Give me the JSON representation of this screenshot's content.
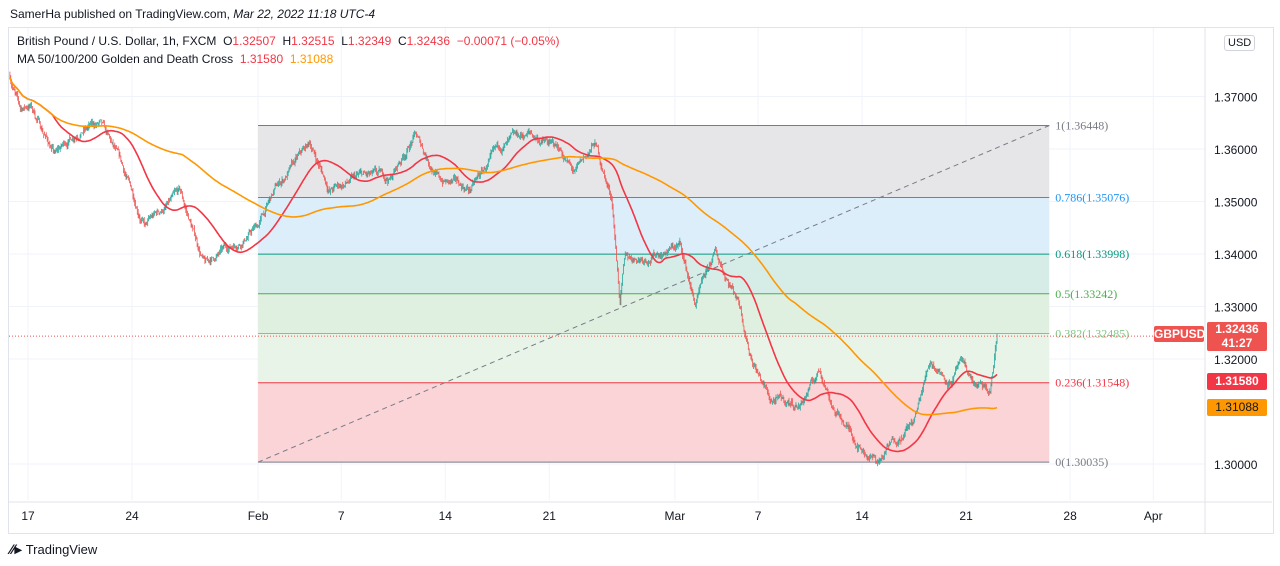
{
  "header": {
    "publisher": "SamerHa published on TradingView.com,",
    "date": "Mar 22, 2022 11:18 UTC-4"
  },
  "legend": {
    "symbol": "British Pound / U.S. Dollar, 1h, FXCM",
    "o_label": "O",
    "o": "1.32507",
    "h_label": "H",
    "h": "1.32515",
    "l_label": "L",
    "l": "1.32349",
    "c_label": "C",
    "c": "1.32436",
    "change": "−0.00071 (−0.05%)",
    "ma_name": "MA 50/100/200 Golden and Death Cross",
    "ma1": "1.31580",
    "ma2": "1.31088"
  },
  "currency": "USD",
  "badges": {
    "symbol": "GBPUSD",
    "price": "1.32436",
    "countdown": "41:27",
    "ma1": "1.31580",
    "ma2": "1.31088"
  },
  "colors": {
    "up": "#26a69a",
    "down": "#ef5350",
    "ma1": "#f23645",
    "ma2": "#ff9800"
  },
  "footer": {
    "brand": "TradingView"
  },
  "chart_data": {
    "type": "candlestick",
    "timeframe": "1h",
    "x_ticks": [
      {
        "t": 0,
        "label": "17"
      },
      {
        "t": 5,
        "label": "24"
      },
      {
        "t": 11.06,
        "label": "Feb"
      },
      {
        "t": 15.06,
        "label": "7"
      },
      {
        "t": 20.06,
        "label": "14"
      },
      {
        "t": 25.06,
        "label": "21"
      },
      {
        "t": 31.1,
        "label": "Mar"
      },
      {
        "t": 35.1,
        "label": "7"
      },
      {
        "t": 40.1,
        "label": "14"
      },
      {
        "t": 45.1,
        "label": "21"
      },
      {
        "t": 50.1,
        "label": "28"
      },
      {
        "t": 54.1,
        "label": "Apr"
      }
    ],
    "y_ticks": [
      "1.37000",
      "1.36000",
      "1.35000",
      "1.34000",
      "1.33000",
      "1.32000",
      "1.30000"
    ],
    "ylim": [
      1.2935,
      1.3825
    ],
    "price_path": [
      [
        -0.87,
        1.3741
      ],
      [
        -0.38,
        1.3674
      ],
      [
        0.1,
        1.3684
      ],
      [
        1.3,
        1.3589
      ],
      [
        2.5,
        1.364
      ],
      [
        3.46,
        1.3646
      ],
      [
        4.42,
        1.357
      ],
      [
        5.63,
        1.3455
      ],
      [
        7.3,
        1.3512
      ],
      [
        8.5,
        1.3379
      ],
      [
        10.2,
        1.3427
      ],
      [
        11.06,
        1.3455
      ],
      [
        11.9,
        1.3522
      ],
      [
        13.56,
        1.3608
      ],
      [
        14.5,
        1.3522
      ],
      [
        16,
        1.3545
      ],
      [
        17.4,
        1.3541
      ],
      [
        18.6,
        1.3627
      ],
      [
        19.8,
        1.3541
      ],
      [
        21.25,
        1.3522
      ],
      [
        22.7,
        1.3598
      ],
      [
        24.1,
        1.3627
      ],
      [
        25.6,
        1.3598
      ],
      [
        26.3,
        1.355
      ],
      [
        27.26,
        1.3608
      ],
      [
        28.08,
        1.3503
      ],
      [
        28.46,
        1.3312
      ],
      [
        28.7,
        1.3389
      ],
      [
        29.9,
        1.3398
      ],
      [
        31.35,
        1.3417
      ],
      [
        32.07,
        1.3303
      ],
      [
        33.03,
        1.3398
      ],
      [
        34.2,
        1.3312
      ],
      [
        34.7,
        1.3217
      ],
      [
        35.67,
        1.3122
      ],
      [
        37.1,
        1.3112
      ],
      [
        38.08,
        1.3179
      ],
      [
        38.8,
        1.3103
      ],
      [
        40,
        1.3036
      ],
      [
        40.87,
        1.3004
      ],
      [
        41.68,
        1.3046
      ],
      [
        42.64,
        1.3084
      ],
      [
        43.37,
        1.3198
      ],
      [
        44.33,
        1.316
      ],
      [
        44.8,
        1.3189
      ],
      [
        45.53,
        1.315
      ],
      [
        46.25,
        1.3131
      ],
      [
        46.6,
        1.3246
      ]
    ],
    "last_price": 1.32436,
    "ma_lines": [
      {
        "name": "MA 50",
        "last": 1.3158
      },
      {
        "name": "MA 200",
        "last": 1.31088
      }
    ],
    "fibonacci": {
      "t_start": 11.06,
      "t_end": 49.1,
      "low": 1.30035,
      "high": 1.36448,
      "levels": [
        {
          "ratio": "1",
          "price": "1.36448",
          "color": "#787b86",
          "fill": "#e6e6e8"
        },
        {
          "ratio": "0.786",
          "price": "1.35076",
          "color": "#2196f3",
          "fill": "#ddeefb"
        },
        {
          "ratio": "0.618",
          "price": "1.33998",
          "color": "#089981",
          "fill": "#d6ece6"
        },
        {
          "ratio": "0.5",
          "price": "1.33242",
          "color": "#4caf50",
          "fill": "#e0f0e0"
        },
        {
          "ratio": "0.382",
          "price": "1.32485",
          "color": "#81c784",
          "fill": "#e8f4e8"
        },
        {
          "ratio": "0.236",
          "price": "1.31548",
          "color": "#f23645",
          "fill": "#fad4d6"
        },
        {
          "ratio": "0",
          "price": "1.30035",
          "color": "#787b86",
          "fill": ""
        }
      ]
    }
  }
}
